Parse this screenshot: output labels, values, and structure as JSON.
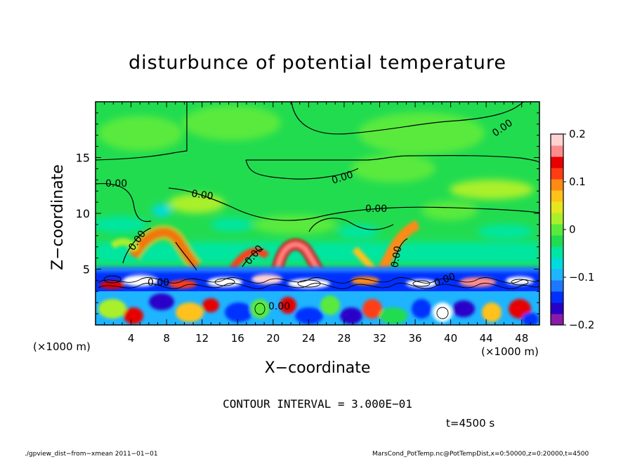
{
  "chart_data": {
    "type": "heatmap",
    "title": "disturbunce of potential temperature",
    "xlabel": "X−coordinate",
    "ylabel": "Z−coordinate",
    "x_unit": "(×1000 m)",
    "x_unit_right": "(×1000 m)",
    "xlim": [
      0,
      50
    ],
    "ylim": [
      0,
      20
    ],
    "x_ticks": [
      4,
      8,
      12,
      16,
      20,
      24,
      28,
      32,
      36,
      40,
      44,
      48
    ],
    "y_ticks": [
      5,
      10,
      15
    ],
    "colorbar": {
      "min": -0.2,
      "max": 0.2,
      "tick_labels": [
        "0.2",
        "0.1",
        "0",
        "−0.1",
        "−0.2"
      ],
      "tick_values": [
        0.2,
        0.1,
        0,
        -0.1,
        -0.2
      ],
      "colors_bottom_to_top": [
        "#8a1aa8",
        "#2a00c8",
        "#0030ff",
        "#1e78ff",
        "#1eb4ff",
        "#00dcdc",
        "#00e6a0",
        "#22dc50",
        "#5aea3c",
        "#aaf02a",
        "#e6e61e",
        "#ffc21a",
        "#ff8a14",
        "#ff3c14",
        "#e60000",
        "#ff8c8c",
        "#ffd2d2"
      ]
    },
    "contour_labels": [
      "0.00",
      "0.00",
      "0.00",
      "0.00",
      "0.00",
      "0.00",
      "0.00",
      "0.00",
      "0.00",
      "0.00",
      "0.00"
    ],
    "contour_interval_text": "CONTOUR INTERVAL = 3.000E−01",
    "time_text": "t=4500 s"
  },
  "footer": {
    "left": "./gpview_dist−from−xmean  2011−01−01",
    "right": "MarsCond_PotTemp.nc@PotTempDist,x=0:50000,z=0:20000,t=4500"
  }
}
